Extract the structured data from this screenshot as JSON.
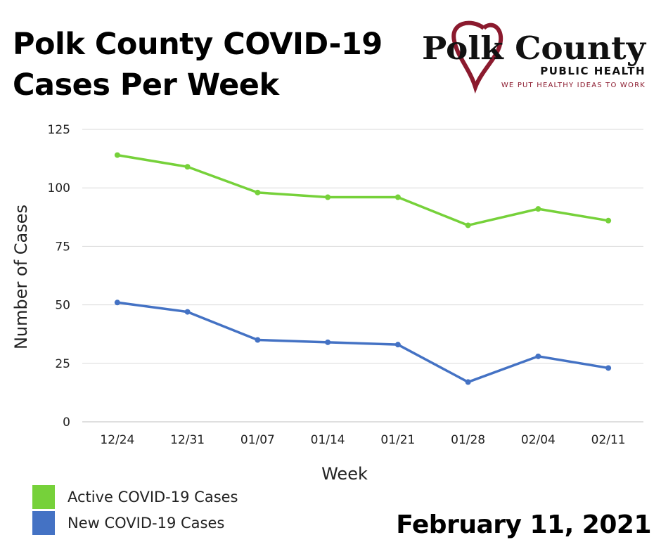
{
  "title_line1": "Polk County COVID-19",
  "title_line2": "Cases Per Week",
  "logo": {
    "name": "Polk County",
    "sub": "PUBLIC HEALTH",
    "tagline": "WE PUT HEALTHY IDEAS TO WORK",
    "heart_color": "#8b1a2e"
  },
  "date": "February 11, 2021",
  "chart_data": {
    "type": "line",
    "categories": [
      "12/24",
      "12/31",
      "01/07",
      "01/14",
      "01/21",
      "01/28",
      "02/04",
      "02/11"
    ],
    "series": [
      {
        "name": "Active COVID-19 Cases",
        "color": "#76d13a",
        "values": [
          114,
          109,
          98,
          96,
          96,
          84,
          91,
          86
        ]
      },
      {
        "name": "New COVID-19 Cases",
        "color": "#4472c4",
        "values": [
          51,
          47,
          35,
          34,
          33,
          17,
          28,
          23
        ]
      }
    ],
    "xlabel": "Week",
    "ylabel": "Number of Cases",
    "ylim": [
      0,
      125
    ],
    "yticks": [
      0,
      25,
      50,
      75,
      100,
      125
    ],
    "grid": true,
    "legend": "bottom-left"
  }
}
